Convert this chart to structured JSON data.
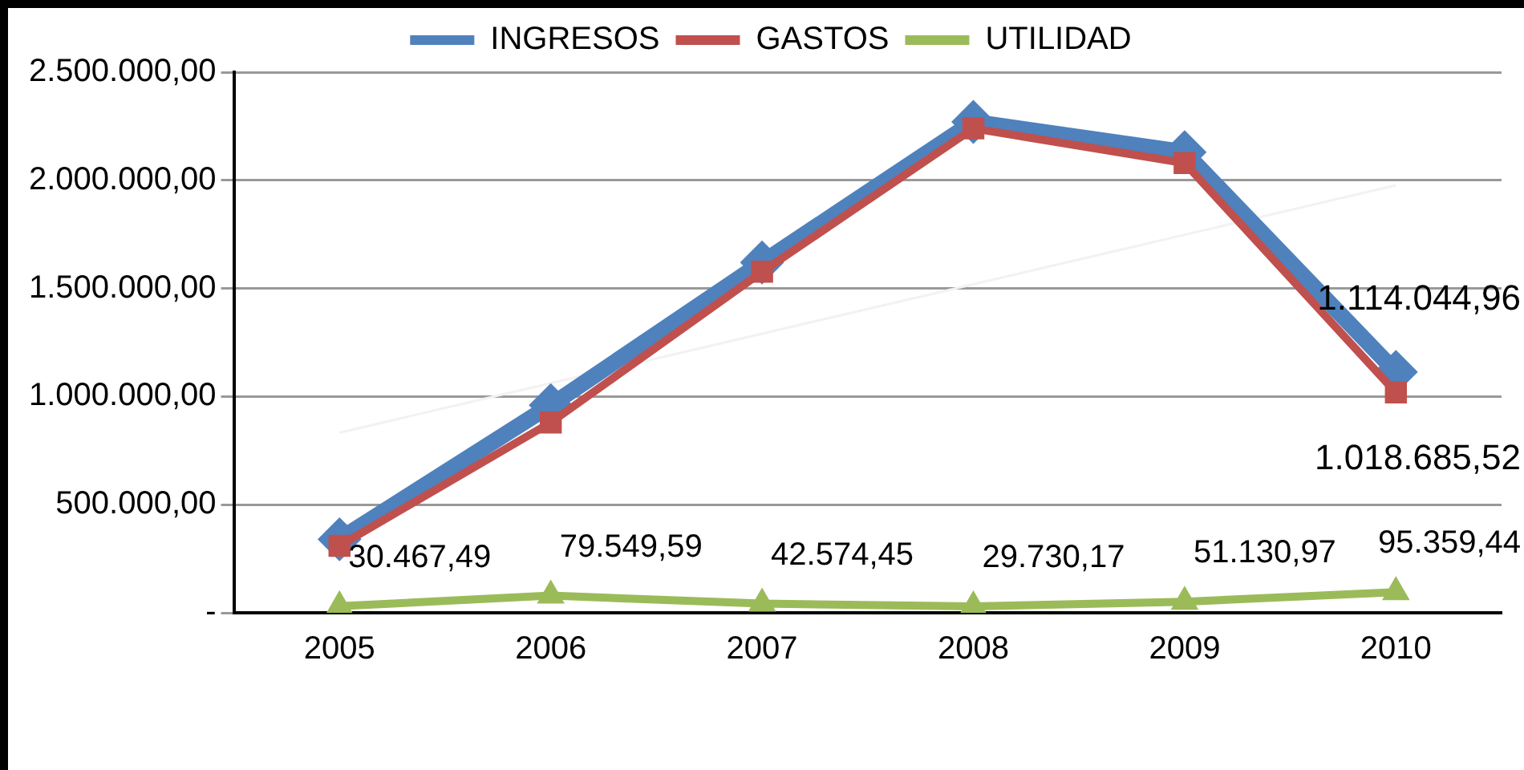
{
  "chart_data": {
    "type": "line",
    "categories": [
      "2005",
      "2006",
      "2007",
      "2008",
      "2009",
      "2010"
    ],
    "series": [
      {
        "name": "INGRESOS",
        "color": "#4f81bd",
        "marker": "diamond",
        "values": [
          340000,
          960000,
          1620000,
          2270000,
          2130000,
          1114044.96
        ],
        "value_labels": [
          null,
          null,
          null,
          null,
          null,
          "1.114.044,96"
        ]
      },
      {
        "name": "GASTOS",
        "color": "#c0504d",
        "marker": "square",
        "values": [
          310000,
          880000,
          1577000,
          2240000,
          2080000,
          1018685.52
        ],
        "value_labels": [
          null,
          null,
          null,
          null,
          null,
          "1.018.685,52"
        ]
      },
      {
        "name": "UTILIDAD",
        "color": "#9bbb59",
        "marker": "triangle",
        "values": [
          30467.49,
          79549.59,
          42574.45,
          29730.17,
          51130.97,
          95359.44
        ],
        "value_labels": [
          "30.467,49",
          "79.549,59",
          "42.574,45",
          "29.730,17",
          "51.130,97",
          "95.359,44"
        ]
      },
      {
        "type": "line",
        "color": "#f2f2f2",
        "marker": "none",
        "values": [
          833000,
          null,
          null,
          null,
          null,
          1977000
        ]
      }
    ],
    "ylim": [
      0,
      2500000
    ],
    "yticks": [
      {
        "value": 0,
        "label": "-"
      },
      {
        "value": 500000,
        "label": "500.000,00"
      },
      {
        "value": 1000000,
        "label": "1.000.000,00"
      },
      {
        "value": 1500000,
        "label": "1.500.000,00"
      },
      {
        "value": 2000000,
        "label": "2.000.000,00"
      },
      {
        "value": 2500000,
        "label": "2.500.000,00"
      }
    ],
    "grid": "y",
    "legend": "top"
  }
}
